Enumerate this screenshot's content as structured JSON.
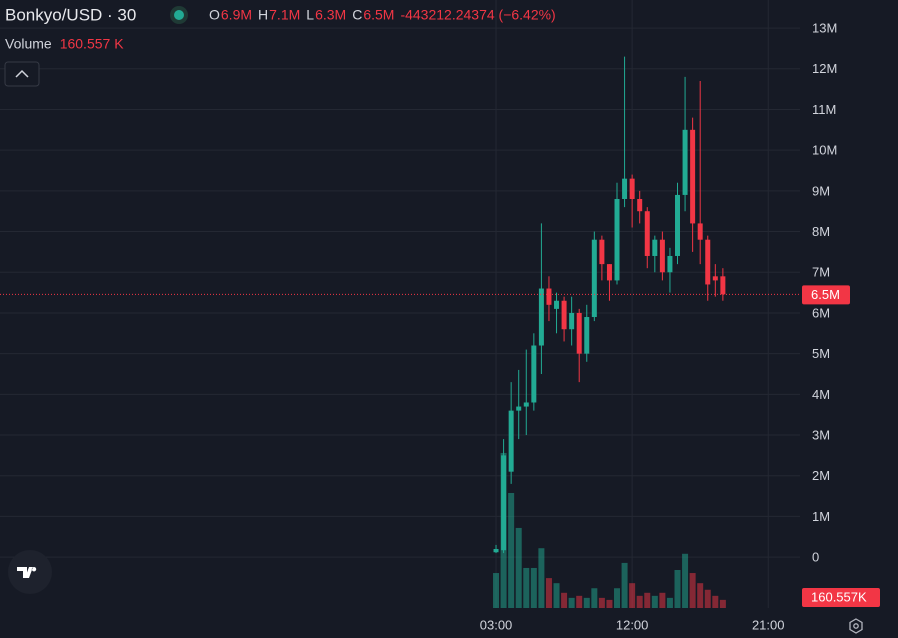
{
  "header": {
    "symbol": "Bonkyo/USD · 30",
    "ohlc": [
      {
        "key": "O",
        "value": "6.9M"
      },
      {
        "key": "H",
        "value": "7.1M"
      },
      {
        "key": "L",
        "value": "6.3M"
      },
      {
        "key": "C",
        "value": "6.5M"
      }
    ],
    "change": "-443212.24374 (−6.42%)",
    "volume_label": "Volume",
    "volume_value": "160.557 K",
    "price_tag": "6.5M",
    "volume_tag": "160.557K"
  },
  "chart_data": {
    "type": "candlestick",
    "up_color": "#22ab94",
    "down_color": "#f23645",
    "grid": true,
    "xlim": [
      -29.8,
      23.1
    ],
    "xticks": [
      {
        "value": 3,
        "label": "03:00"
      },
      {
        "value": 12,
        "label": "12:00"
      },
      {
        "value": 21,
        "label": "21:00"
      }
    ],
    "ylim": [
      -1250000,
      13690000
    ],
    "yticks": [
      0,
      {
        "value": 1000000,
        "label": "1M"
      },
      {
        "value": 2000000,
        "label": "2M"
      },
      {
        "value": 3000000,
        "label": "3M"
      },
      {
        "value": 4000000,
        "label": "4M"
      },
      {
        "value": 5000000,
        "label": "5M"
      },
      {
        "value": 6000000,
        "label": "6M"
      },
      {
        "value": 7000000,
        "label": "7M"
      },
      {
        "value": 8000000,
        "label": "8M"
      },
      {
        "value": 9000000,
        "label": "9M"
      },
      {
        "value": 10000000,
        "label": "10M"
      },
      {
        "value": 11000000,
        "label": "11M"
      },
      {
        "value": 12000000,
        "label": "12M"
      },
      {
        "value": 13000000,
        "label": "13M"
      }
    ],
    "volume_ylim": [
      0,
      12000000
    ],
    "x": [
      3,
      3.5,
      4,
      4.5,
      5,
      5.5,
      6,
      6.5,
      7,
      7.5,
      8,
      8.5,
      9,
      9.5,
      10,
      10.5,
      11,
      11.5,
      12,
      12.5,
      13,
      13.5,
      14,
      14.5,
      15,
      15.5,
      16,
      16.5,
      17,
      17.5,
      18
    ],
    "open": [
      120000,
      170000,
      2100000,
      3600000,
      3700000,
      3800000,
      5200000,
      6600000,
      6100000,
      6300000,
      5600000,
      6000000,
      5000000,
      5900000,
      7800000,
      7200000,
      6800000,
      8800000,
      9300000,
      8800000,
      8500000,
      7400000,
      7800000,
      7000000,
      7400000,
      8900000,
      10500000,
      8200000,
      7800000,
      6900000,
      6900000
    ],
    "high": [
      300000,
      2900000,
      4300000,
      4600000,
      5100000,
      5500000,
      8200000,
      6900000,
      6500000,
      6400000,
      6400000,
      6100000,
      6200000,
      8000000,
      7900000,
      7200000,
      9200000,
      12300000,
      9400000,
      9000000,
      8600000,
      7900000,
      8000000,
      7600000,
      9200000,
      11800000,
      10800000,
      11700000,
      7900000,
      7200000,
      7100000
    ],
    "low": [
      100000,
      100000,
      1800000,
      2900000,
      3000000,
      3600000,
      4500000,
      5800000,
      5500000,
      5300000,
      5200000,
      4300000,
      4800000,
      5800000,
      6800000,
      6300000,
      6700000,
      8600000,
      8100000,
      8200000,
      7100000,
      7000000,
      6800000,
      6500000,
      7200000,
      8500000,
      7500000,
      7200000,
      6300000,
      6400000,
      6300000
    ],
    "close": [
      200000,
      2500000,
      3600000,
      3700000,
      3800000,
      5200000,
      6600000,
      6200000,
      6300000,
      5600000,
      6000000,
      5000000,
      5900000,
      7800000,
      7200000,
      6800000,
      8800000,
      9300000,
      8800000,
      8500000,
      7400000,
      7800000,
      7000000,
      7400000,
      8900000,
      10500000,
      8200000,
      7800000,
      6700000,
      6800000,
      6457000
    ],
    "volume": [
      690000,
      3060000,
      2270000,
      1580000,
      790000,
      790000,
      1180000,
      590000,
      490000,
      300000,
      200000,
      240000,
      200000,
      390000,
      200000,
      160000,
      390000,
      890000,
      490000,
      240000,
      300000,
      240000,
      300000,
      200000,
      750000,
      1070000,
      690000,
      490000,
      360000,
      240000,
      160557
    ]
  }
}
